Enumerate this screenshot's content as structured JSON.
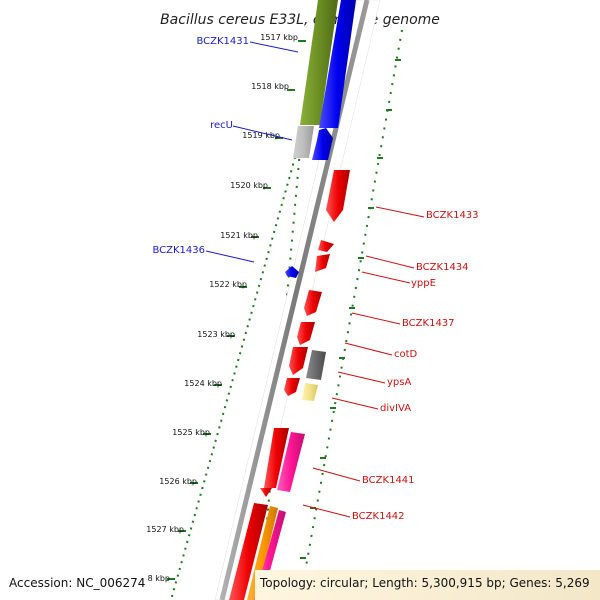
{
  "title": "Bacillus cereus E33L, complete genome",
  "footer": {
    "accession": "Accession: NC_006274",
    "summary": "Topology: circular; Length: 5,300,915 bp; Genes: 5,269"
  },
  "colors": {
    "forward_strand": "#1010ee",
    "reverse_strand": "#ee1010",
    "leader_forward": "#1a1acc",
    "leader_reverse": "#cc1111",
    "tick": "#1e7a1e",
    "backbone": "#8a8a8a"
  },
  "ticks": [
    {
      "label": "1517 kbp"
    },
    {
      "label": "1518 kbp"
    },
    {
      "label": "1519 kbp"
    },
    {
      "label": "1520 kbp"
    },
    {
      "label": "1521 kbp"
    },
    {
      "label": "1522 kbp"
    },
    {
      "label": "1523 kbp"
    },
    {
      "label": "1524 kbp"
    },
    {
      "label": "1525 kbp"
    },
    {
      "label": "1526 kbp"
    },
    {
      "label": "1527 kbp"
    },
    {
      "label": "8 kbp"
    }
  ],
  "gene_labels": [
    {
      "label": "BCZK1431",
      "strand": "forward"
    },
    {
      "label": "recU",
      "strand": "forward"
    },
    {
      "label": "BCZK1436",
      "strand": "forward"
    },
    {
      "label": "BCZK1433",
      "strand": "reverse"
    },
    {
      "label": "BCZK1434",
      "strand": "reverse"
    },
    {
      "label": "yppE",
      "strand": "reverse"
    },
    {
      "label": "BCZK1437",
      "strand": "reverse"
    },
    {
      "label": "cotD",
      "strand": "reverse"
    },
    {
      "label": "ypsA",
      "strand": "reverse"
    },
    {
      "label": "divIVA",
      "strand": "reverse"
    },
    {
      "label": "BCZK1441",
      "strand": "reverse"
    },
    {
      "label": "BCZK1442",
      "strand": "reverse"
    }
  ]
}
